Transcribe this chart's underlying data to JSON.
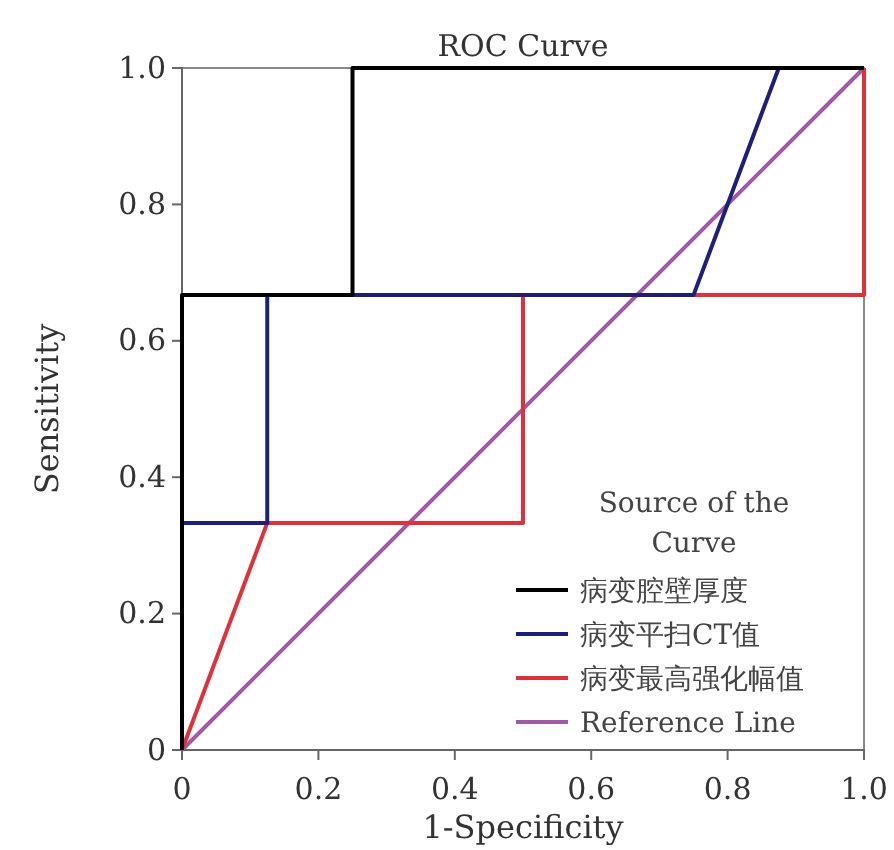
{
  "chart_data": {
    "type": "line",
    "title": "ROC Curve",
    "xlabel": "1-Specificity",
    "ylabel": "Sensitivity",
    "legend_title": "Source of the Curve",
    "xlim": [
      0,
      1
    ],
    "ylim": [
      0,
      1
    ],
    "xticks": [
      0,
      {
        "value": 0.2,
        "label": "0.2"
      },
      {
        "value": 0.4,
        "label": "0.4"
      },
      {
        "value": 0.6,
        "label": "0.6"
      },
      {
        "value": 0.8,
        "label": "0.8"
      },
      {
        "value": 1,
        "label": "1.0"
      }
    ],
    "yticks": [
      0,
      {
        "value": 0.2,
        "label": "0.2"
      },
      {
        "value": 0.4,
        "label": "0.4"
      },
      {
        "value": 0.6,
        "label": "0.6"
      },
      {
        "value": 0.8,
        "label": "0.8"
      },
      {
        "value": 1,
        "label": "1.0"
      }
    ],
    "grid": false,
    "legend": "bottom right",
    "marker": "none",
    "line_style": "solid",
    "series": [
      {
        "name": "病变腔壁厚度",
        "color": "#000000",
        "x": [
          0,
          0,
          0.25,
          0.25,
          1
        ],
        "values": [
          0,
          0.667,
          0.667,
          1,
          1
        ]
      },
      {
        "name": "病变平扫CT值",
        "color": "#1f1f7a",
        "x": [
          0,
          0,
          0.125,
          0.125,
          0.75,
          0.875,
          1
        ],
        "values": [
          0,
          0.333,
          0.333,
          0.667,
          0.667,
          1,
          1
        ]
      },
      {
        "name": "病变最高强化幅值",
        "color": "#e0303a",
        "x": [
          0,
          0.125,
          0.5,
          0.5,
          1,
          1
        ],
        "values": [
          0,
          0.333,
          0.333,
          0.667,
          0.667,
          1
        ]
      },
      {
        "name": "Reference Line",
        "color": "#a05aa8",
        "x": [
          0,
          1
        ],
        "values": [
          0,
          1
        ]
      }
    ]
  }
}
